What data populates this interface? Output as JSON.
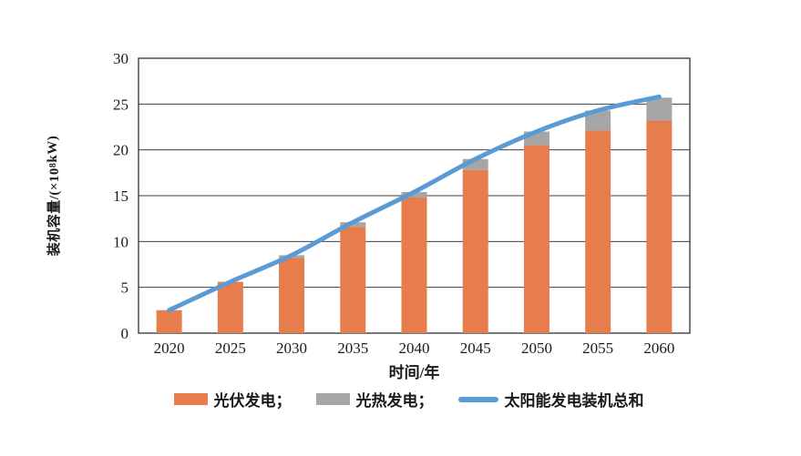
{
  "chart_data": {
    "type": "bar",
    "subtype": "stacked-bar-with-line-overlay",
    "title": "",
    "categories": [
      "2020",
      "2025",
      "2030",
      "2035",
      "2040",
      "2045",
      "2050",
      "2055",
      "2060"
    ],
    "series": [
      {
        "name": "光伏发电",
        "type": "bar",
        "color": "#E77C4D",
        "values": [
          2.5,
          5.6,
          8.2,
          11.6,
          14.8,
          17.8,
          20.5,
          22.1,
          23.2
        ]
      },
      {
        "name": "光热发电",
        "type": "bar",
        "color": "#A6A6A6",
        "values": [
          0,
          0,
          0.3,
          0.5,
          0.6,
          1.2,
          1.5,
          2.2,
          2.5
        ]
      },
      {
        "name": "太阳能发电装机总和",
        "type": "line",
        "color": "#5B9BD5",
        "values": [
          2.5,
          5.6,
          8.5,
          12.1,
          15.4,
          19.0,
          22.0,
          24.3,
          25.8
        ]
      }
    ],
    "stacked": true,
    "xlabel": "时间/年",
    "ylabel": "装机容量/(×10⁸ kW)",
    "ylabel_parts": {
      "prefix": "装机容量/(×10",
      "sup": "8",
      "suffix": " kW)"
    },
    "ylim": [
      0,
      30
    ],
    "yticks": [
      0,
      5,
      10,
      15,
      20,
      25,
      30
    ],
    "grid": "horizontal",
    "legend_position": "bottom",
    "legend_labels": [
      "光伏发电；",
      "光热发电；",
      "太阳能发电装机总和"
    ]
  },
  "colors": {
    "pv_bar": "#E77C4D",
    "csp_bar": "#A6A6A6",
    "total_line": "#5B9BD5",
    "axis": "#3F3F3F",
    "text": "#1A1A1A",
    "background": "#FFFFFF"
  }
}
